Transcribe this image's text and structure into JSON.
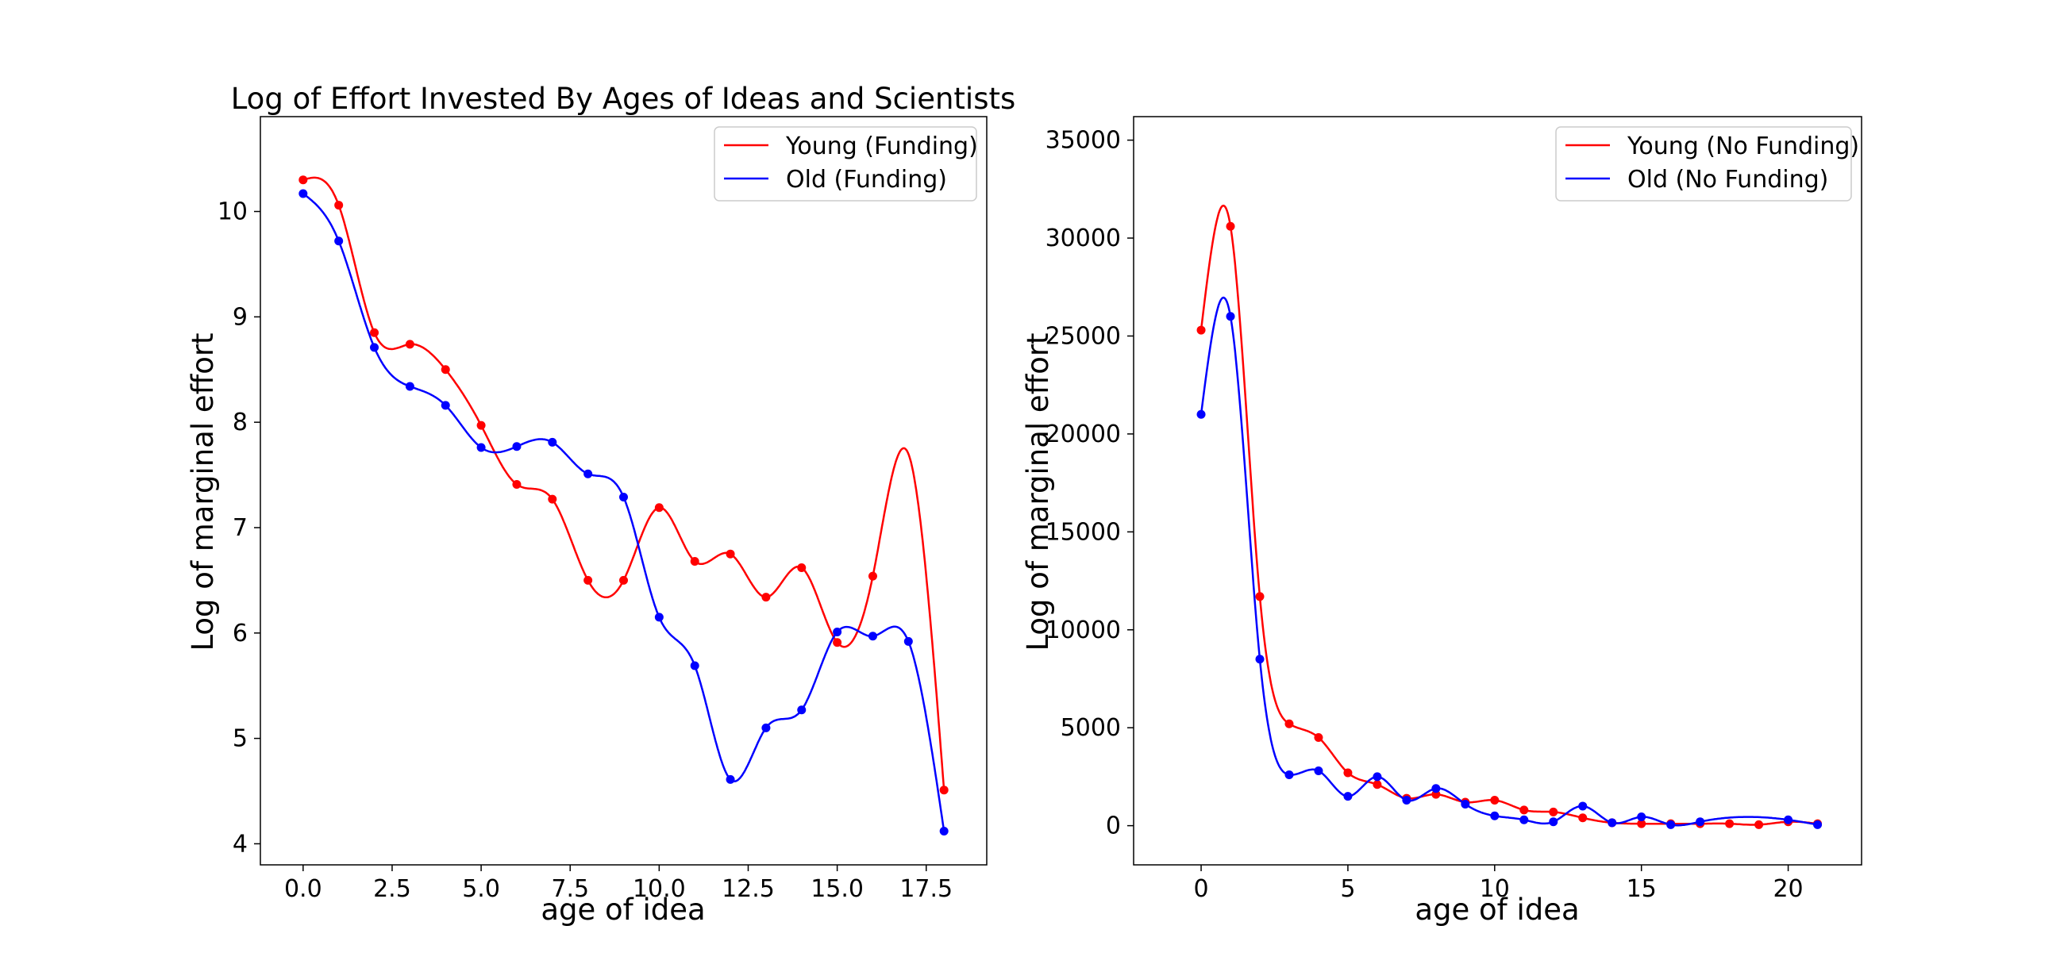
{
  "chart_data": [
    {
      "type": "line",
      "title": "Log of Effort Invested By Ages of Ideas and Scientists",
      "xlabel": "age of idea",
      "ylabel": "Log of marginal effort",
      "xlim": [
        -1.2,
        19.2
      ],
      "ylim": [
        3.8,
        10.9
      ],
      "xticks": [
        0.0,
        2.5,
        5.0,
        7.5,
        10.0,
        12.5,
        15.0,
        17.5
      ],
      "xtick_labels": [
        "0.0",
        "2.5",
        "5.0",
        "7.5",
        "10.0",
        "12.5",
        "15.0",
        "17.5"
      ],
      "yticks": [
        4,
        5,
        6,
        7,
        8,
        9,
        10
      ],
      "ytick_labels": [
        "4",
        "5",
        "6",
        "7",
        "8",
        "9",
        "10"
      ],
      "legend_position": "top-right",
      "grid": false,
      "series": [
        {
          "name": "Young (Funding)",
          "color": "#ff0000",
          "x": [
            0,
            1,
            2,
            3,
            4,
            5,
            6,
            7,
            8,
            9,
            10,
            11,
            12,
            13,
            14,
            15,
            16,
            17,
            18
          ],
          "values": [
            10.3,
            10.06,
            8.85,
            8.74,
            8.5,
            7.97,
            7.41,
            7.27,
            6.5,
            6.5,
            7.19,
            6.68,
            6.75,
            6.34,
            6.62,
            5.91,
            6.54,
            7.7,
            4.51
          ],
          "markers": [
            true,
            true,
            true,
            true,
            true,
            true,
            true,
            true,
            true,
            true,
            true,
            true,
            true,
            true,
            true,
            true,
            true,
            false,
            true
          ]
        },
        {
          "name": "Old (Funding)",
          "color": "#0000ff",
          "x": [
            0,
            1,
            2,
            3,
            4,
            5,
            6,
            7,
            8,
            9,
            10,
            11,
            12,
            13,
            14,
            15,
            16,
            17,
            18
          ],
          "values": [
            10.17,
            9.72,
            8.71,
            8.34,
            8.16,
            7.76,
            7.77,
            7.81,
            7.51,
            7.29,
            6.15,
            5.69,
            4.61,
            5.1,
            5.27,
            6.01,
            5.97,
            5.92,
            4.12
          ],
          "markers": [
            true,
            true,
            true,
            true,
            true,
            true,
            true,
            true,
            true,
            true,
            true,
            true,
            true,
            true,
            true,
            true,
            true,
            true,
            true
          ]
        }
      ]
    },
    {
      "type": "line",
      "title": "",
      "xlabel": "age of idea",
      "ylabel": "Log of marginal effort",
      "xlim": [
        -2.3,
        22.5
      ],
      "ylim": [
        -2000,
        36200
      ],
      "xticks": [
        0,
        5,
        10,
        15,
        20
      ],
      "xtick_labels": [
        "0",
        "5",
        "10",
        "15",
        "20"
      ],
      "yticks": [
        0,
        5000,
        10000,
        15000,
        20000,
        25000,
        30000,
        35000
      ],
      "ytick_labels": [
        "0",
        "5000",
        "10000",
        "15000",
        "20000",
        "25000",
        "30000",
        "35000"
      ],
      "legend_position": "top-right",
      "grid": false,
      "series": [
        {
          "name": "Young (No Funding)",
          "color": "#ff0000",
          "x": [
            0,
            1,
            2,
            3,
            4,
            5,
            6,
            7,
            8,
            9,
            10,
            11,
            12,
            13,
            14,
            15,
            16,
            17,
            18,
            19,
            20,
            21
          ],
          "values": [
            25300,
            30600,
            11700,
            5200,
            4500,
            2700,
            2100,
            1400,
            1600,
            1200,
            1300,
            800,
            700,
            400,
            150,
            100,
            100,
            100,
            100,
            50,
            200,
            100
          ]
        },
        {
          "name": "Old (No Funding)",
          "color": "#0000ff",
          "x": [
            0,
            1,
            2,
            3,
            4,
            5,
            6,
            7,
            8,
            9,
            10,
            11,
            12,
            13,
            14,
            15,
            16,
            17,
            20,
            21
          ],
          "values": [
            21000,
            26000,
            8500,
            2600,
            2800,
            1500,
            2500,
            1300,
            1900,
            1100,
            500,
            300,
            200,
            1000,
            150,
            450,
            50,
            200,
            300,
            50
          ]
        }
      ]
    }
  ]
}
